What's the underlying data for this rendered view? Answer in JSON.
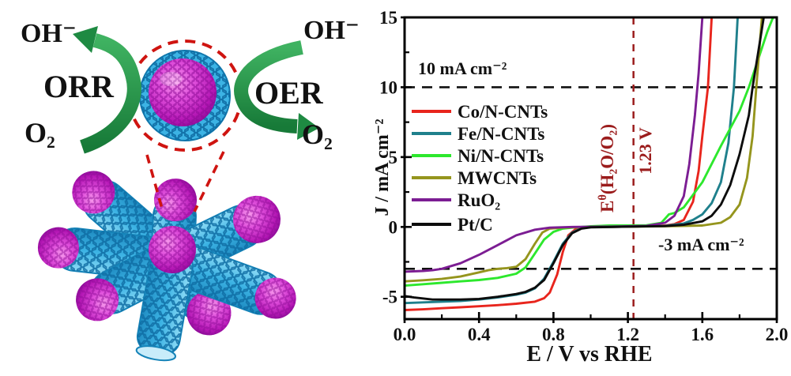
{
  "figure": {
    "left_diagram": {
      "labels": {
        "oh_left": "OH⁻",
        "orr": "ORR",
        "o2_left": "O₂",
        "oh_right": "OH⁻",
        "oer": "OER",
        "o2_right": "O₂"
      },
      "colors": {
        "arrow_green": "#27a050",
        "tube_blue": "#3cb3e4",
        "tube_edge_blue": "#0e6ca3",
        "particle_magenta": "#cc2cc0",
        "callout_red": "#cf1410"
      }
    }
  },
  "chart_data": {
    "type": "line",
    "title": "",
    "xlabel": "E / V vs RHE",
    "ylabel": "J / mA cm⁻²",
    "xlim": [
      0.0,
      2.0
    ],
    "ylim": [
      -6.6,
      15
    ],
    "grid": false,
    "legend_position": "upper-left-inside",
    "x_ticks": [
      {
        "v": 0.0,
        "label": "0.0"
      },
      {
        "v": 0.4,
        "label": "0.4"
      },
      {
        "v": 0.8,
        "label": "0.8"
      },
      {
        "v": 1.2,
        "label": "1.2"
      },
      {
        "v": 1.6,
        "label": "1.6"
      },
      {
        "v": 2.0,
        "label": "2.0"
      }
    ],
    "y_ticks": [
      {
        "v": -5,
        "label": "-5"
      },
      {
        "v": 0,
        "label": "0"
      },
      {
        "v": 5,
        "label": "5"
      },
      {
        "v": 10,
        "label": "10"
      },
      {
        "v": 15,
        "label": "15"
      }
    ],
    "x_minor_ticks": [
      0.2,
      0.6,
      1.0,
      1.4,
      1.8
    ],
    "y_minor_ticks": [
      -2.5,
      2.5,
      7.5,
      12.5
    ],
    "hlines": [
      {
        "y": 10,
        "label": "10 mA cm⁻²",
        "color": "#111111"
      },
      {
        "y": -3,
        "label": "-3 mA cm⁻²",
        "color": "#111111"
      }
    ],
    "vline": {
      "x": 1.23,
      "label_base": "E",
      "label_sup": "θ",
      "label_formula": "(H₂O/O₂)",
      "label_value": "1.23 V",
      "color": "#9b1c1c"
    },
    "series": [
      {
        "name": "Co/N-CNTs",
        "color": "#e8251d",
        "points": [
          [
            0,
            -5.95
          ],
          [
            0.1,
            -5.9
          ],
          [
            0.2,
            -5.82
          ],
          [
            0.3,
            -5.75
          ],
          [
            0.4,
            -5.68
          ],
          [
            0.5,
            -5.6
          ],
          [
            0.6,
            -5.5
          ],
          [
            0.7,
            -5.35
          ],
          [
            0.75,
            -5.1
          ],
          [
            0.78,
            -4.7
          ],
          [
            0.82,
            -3.4
          ],
          [
            0.85,
            -1.8
          ],
          [
            0.88,
            -0.6
          ],
          [
            0.92,
            -0.15
          ],
          [
            1.0,
            -0.02
          ],
          [
            1.1,
            0.0
          ],
          [
            1.2,
            0.02
          ],
          [
            1.3,
            0.05
          ],
          [
            1.4,
            0.1
          ],
          [
            1.45,
            0.2
          ],
          [
            1.5,
            0.5
          ],
          [
            1.55,
            1.8
          ],
          [
            1.58,
            4.0
          ],
          [
            1.6,
            6.5
          ],
          [
            1.63,
            10.0
          ],
          [
            1.65,
            15.0
          ]
        ]
      },
      {
        "name": "Fe/N-CNTs",
        "color": "#1f808c",
        "points": [
          [
            0,
            -5.45
          ],
          [
            0.1,
            -5.4
          ],
          [
            0.2,
            -5.35
          ],
          [
            0.3,
            -5.3
          ],
          [
            0.4,
            -5.2
          ],
          [
            0.5,
            -5.05
          ],
          [
            0.6,
            -4.85
          ],
          [
            0.65,
            -4.7
          ],
          [
            0.7,
            -4.4
          ],
          [
            0.75,
            -3.7
          ],
          [
            0.8,
            -2.5
          ],
          [
            0.85,
            -1.2
          ],
          [
            0.9,
            -0.4
          ],
          [
            0.95,
            -0.1
          ],
          [
            1.0,
            -0.02
          ],
          [
            1.2,
            0.02
          ],
          [
            1.4,
            0.08
          ],
          [
            1.5,
            0.25
          ],
          [
            1.55,
            0.5
          ],
          [
            1.6,
            0.9
          ],
          [
            1.65,
            1.7
          ],
          [
            1.7,
            3.2
          ],
          [
            1.74,
            6.0
          ],
          [
            1.77,
            10.0
          ],
          [
            1.79,
            15.0
          ]
        ]
      },
      {
        "name": "Ni/N-CNTs",
        "color": "#2de82d",
        "points": [
          [
            0,
            -4.2
          ],
          [
            0.1,
            -4.1
          ],
          [
            0.2,
            -4.0
          ],
          [
            0.3,
            -3.9
          ],
          [
            0.4,
            -3.8
          ],
          [
            0.5,
            -3.65
          ],
          [
            0.6,
            -3.35
          ],
          [
            0.65,
            -2.9
          ],
          [
            0.7,
            -1.9
          ],
          [
            0.75,
            -0.9
          ],
          [
            0.8,
            -0.35
          ],
          [
            0.85,
            -0.12
          ],
          [
            0.9,
            -0.05
          ],
          [
            1.0,
            0.05
          ],
          [
            1.1,
            0.1
          ],
          [
            1.2,
            0.1
          ],
          [
            1.3,
            0.12
          ],
          [
            1.38,
            0.3
          ],
          [
            1.42,
            0.9
          ],
          [
            1.45,
            1.0
          ],
          [
            1.5,
            1.4
          ],
          [
            1.6,
            3.2
          ],
          [
            1.7,
            5.8
          ],
          [
            1.8,
            8.3
          ],
          [
            1.85,
            10.0
          ],
          [
            1.9,
            12.0
          ],
          [
            1.95,
            14.0
          ],
          [
            1.98,
            15.0
          ]
        ]
      },
      {
        "name": "MWCNTs",
        "color": "#95951d",
        "points": [
          [
            0,
            -3.9
          ],
          [
            0.1,
            -3.82
          ],
          [
            0.2,
            -3.72
          ],
          [
            0.3,
            -3.55
          ],
          [
            0.4,
            -3.25
          ],
          [
            0.45,
            -3.1
          ],
          [
            0.5,
            -3.0
          ],
          [
            0.55,
            -2.95
          ],
          [
            0.6,
            -2.85
          ],
          [
            0.65,
            -2.3
          ],
          [
            0.7,
            -1.2
          ],
          [
            0.74,
            -0.4
          ],
          [
            0.78,
            -0.12
          ],
          [
            0.85,
            -0.05
          ],
          [
            1.0,
            0.0
          ],
          [
            1.2,
            0.02
          ],
          [
            1.4,
            0.05
          ],
          [
            1.6,
            0.1
          ],
          [
            1.7,
            0.3
          ],
          [
            1.75,
            0.7
          ],
          [
            1.8,
            1.6
          ],
          [
            1.84,
            3.5
          ],
          [
            1.87,
            6.5
          ],
          [
            1.89,
            10.0
          ],
          [
            1.92,
            15.0
          ]
        ]
      },
      {
        "name": "RuO₂",
        "color": "#7c1d93",
        "points": [
          [
            0,
            -3.2
          ],
          [
            0.1,
            -3.15
          ],
          [
            0.15,
            -3.1
          ],
          [
            0.2,
            -3.0
          ],
          [
            0.3,
            -2.6
          ],
          [
            0.4,
            -2.0
          ],
          [
            0.5,
            -1.3
          ],
          [
            0.6,
            -0.6
          ],
          [
            0.7,
            -0.2
          ],
          [
            0.78,
            -0.05
          ],
          [
            0.9,
            0.0
          ],
          [
            1.1,
            0.02
          ],
          [
            1.3,
            0.08
          ],
          [
            1.4,
            0.3
          ],
          [
            1.45,
            0.8
          ],
          [
            1.5,
            2.2
          ],
          [
            1.53,
            4.5
          ],
          [
            1.56,
            8.0
          ],
          [
            1.58,
            11.0
          ],
          [
            1.6,
            15.0
          ]
        ]
      },
      {
        "name": "Pt/C",
        "color": "#0d0d0d",
        "points": [
          [
            0,
            -4.95
          ],
          [
            0.05,
            -5.05
          ],
          [
            0.15,
            -5.2
          ],
          [
            0.3,
            -5.2
          ],
          [
            0.4,
            -5.15
          ],
          [
            0.5,
            -5.0
          ],
          [
            0.6,
            -4.8
          ],
          [
            0.65,
            -4.65
          ],
          [
            0.7,
            -4.35
          ],
          [
            0.75,
            -3.8
          ],
          [
            0.8,
            -2.6
          ],
          [
            0.85,
            -1.3
          ],
          [
            0.9,
            -0.45
          ],
          [
            0.95,
            -0.12
          ],
          [
            1.0,
            -0.03
          ],
          [
            1.2,
            0.02
          ],
          [
            1.4,
            0.06
          ],
          [
            1.5,
            0.15
          ],
          [
            1.6,
            0.4
          ],
          [
            1.65,
            0.8
          ],
          [
            1.7,
            1.6
          ],
          [
            1.75,
            3.0
          ],
          [
            1.8,
            5.2
          ],
          [
            1.85,
            8.0
          ],
          [
            1.87,
            10.0
          ],
          [
            1.9,
            12.5
          ],
          [
            1.93,
            15.0
          ]
        ]
      }
    ]
  }
}
